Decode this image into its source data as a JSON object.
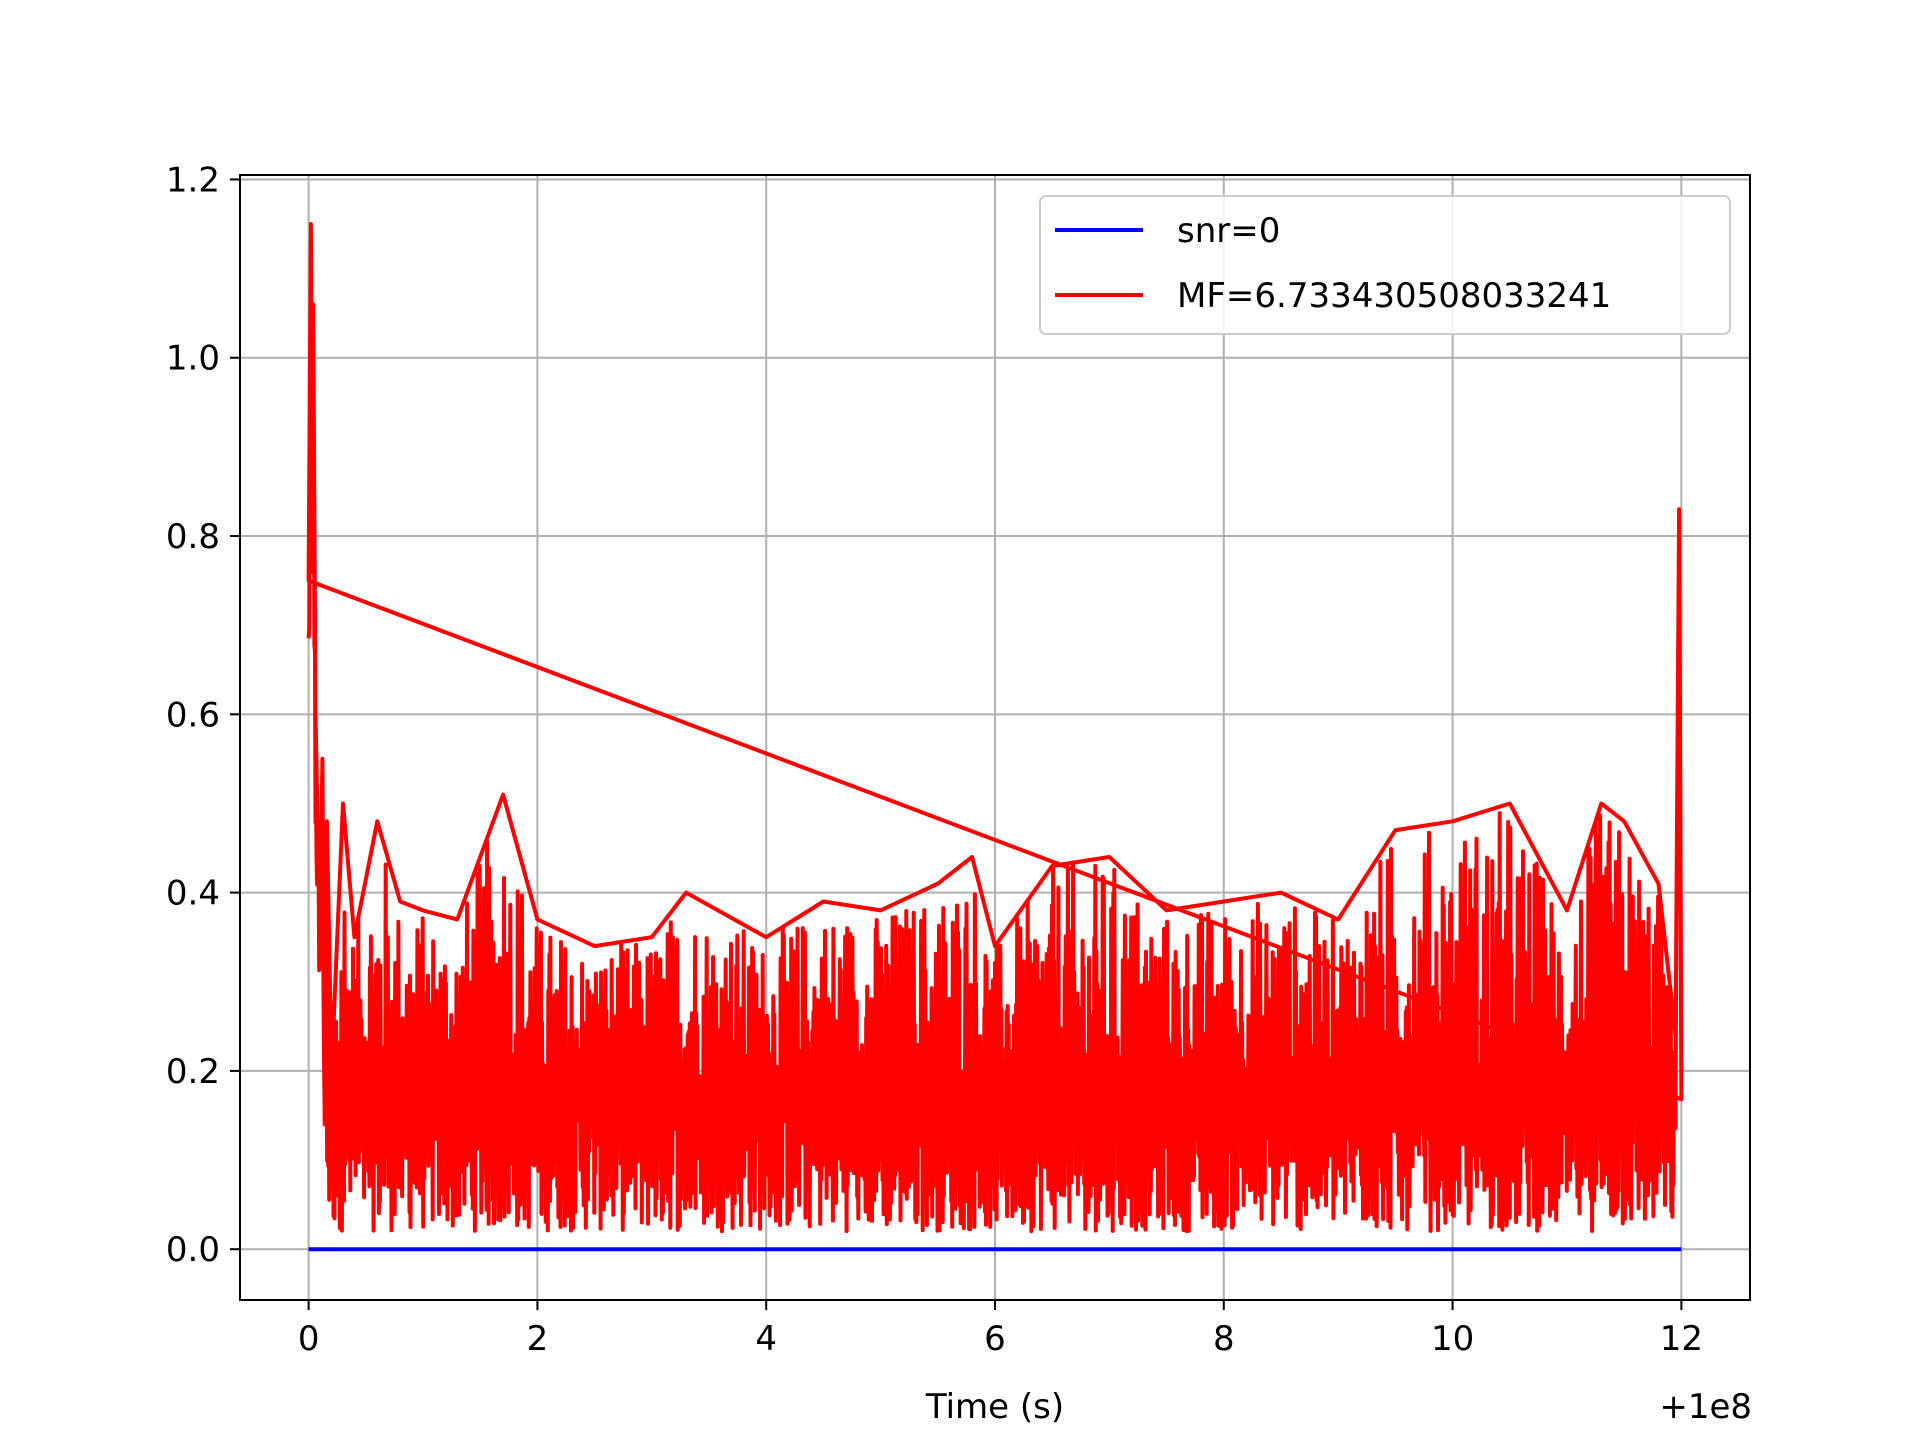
{
  "chart_data": {
    "type": "line",
    "title": "",
    "xlabel": "Time (s)",
    "ylabel": "",
    "x_offset_label": "+1e8",
    "xlim": [
      -0.6,
      12.6
    ],
    "ylim": [
      -0.057,
      1.205
    ],
    "x_ticks": [
      0,
      2,
      4,
      6,
      8,
      10,
      12
    ],
    "x_tick_labels": [
      "0",
      "2",
      "4",
      "6",
      "8",
      "10",
      "12"
    ],
    "y_ticks": [
      0.0,
      0.2,
      0.4,
      0.6,
      0.8,
      1.0,
      1.2
    ],
    "y_tick_labels": [
      "0.0",
      "0.2",
      "0.4",
      "0.6",
      "0.8",
      "1.0",
      "1.2"
    ],
    "grid": true,
    "legend_position": "top-right",
    "series": [
      {
        "name": "snr=0",
        "color": "#0000ff",
        "x": [
          0,
          12
        ],
        "y": [
          0.0,
          0.0
        ]
      },
      {
        "name": "MF=6.733430508033241",
        "color": "#ff0000",
        "style": "dense noisy signal",
        "x": [
          0.0,
          0.02,
          0.03,
          0.04,
          0.06,
          0.08,
          0.1,
          0.12,
          0.14,
          0.16,
          0.2,
          0.3,
          0.4,
          0.6,
          0.8,
          1.0,
          1.3,
          1.7,
          2.0,
          2.5,
          3.0,
          3.3,
          4.0,
          4.5,
          5.0,
          5.5,
          5.8,
          6.0,
          6.5,
          7.0,
          7.5,
          8.0,
          8.5,
          9.0,
          9.5,
          10.0,
          10.5,
          11.0,
          11.3,
          11.5,
          11.8,
          11.95,
          11.98,
          12.0
        ],
        "y": [
          0.75,
          1.15,
          0.9,
          1.06,
          0.6,
          0.47,
          0.36,
          0.55,
          0.14,
          0.48,
          0.2,
          0.5,
          0.35,
          0.48,
          0.39,
          0.38,
          0.37,
          0.51,
          0.37,
          0.34,
          0.35,
          0.4,
          0.35,
          0.39,
          0.38,
          0.41,
          0.44,
          0.34,
          0.43,
          0.44,
          0.38,
          0.39,
          0.4,
          0.37,
          0.47,
          0.48,
          0.5,
          0.38,
          0.5,
          0.48,
          0.41,
          0.24,
          0.83,
          0.2
        ],
        "baseline_band": [
          0.02,
          0.35
        ]
      }
    ]
  }
}
